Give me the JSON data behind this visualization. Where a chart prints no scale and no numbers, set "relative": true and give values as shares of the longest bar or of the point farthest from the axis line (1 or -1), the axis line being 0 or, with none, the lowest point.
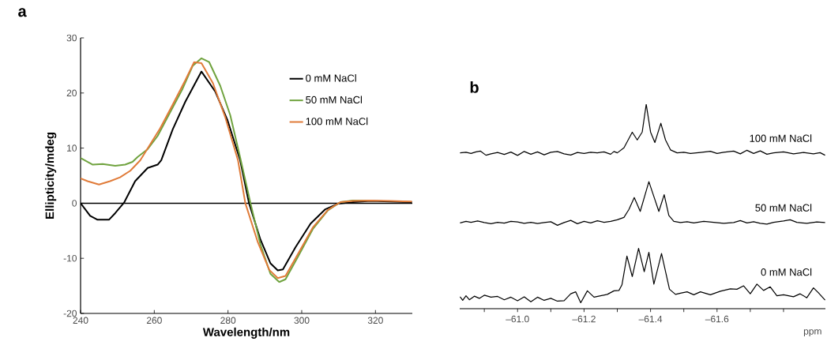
{
  "chart_data": [
    {
      "type": "line",
      "title": "a",
      "xlabel": "Wavelength/nm",
      "ylabel": "Ellipticity/mdeg",
      "xlim": [
        240,
        330
      ],
      "ylim": [
        -20,
        30
      ],
      "xticks": [
        240,
        260,
        280,
        300,
        320
      ],
      "yticks": [
        -20,
        -10,
        0,
        10,
        20,
        30
      ],
      "legend": "top right",
      "ref_lines": [
        {
          "axis": "y",
          "value": 0,
          "color": "#000000"
        }
      ],
      "series": [
        {
          "name": "0 mM NaCl",
          "color": "#000000",
          "x": [
            240,
            242.6,
            244.6,
            247.7,
            249.4,
            251.8,
            254.8,
            258.2,
            260.9,
            261.9,
            265,
            268.4,
            272.8,
            276.5,
            279.9,
            283.3,
            285.7,
            288.8,
            291.5,
            293.5,
            294.9,
            298.3,
            302.4,
            306.4,
            309.8,
            313.9,
            318.7,
            324.1,
            329.9
          ],
          "values": [
            0,
            -2.3,
            -3.0,
            -3.0,
            -1.8,
            0.1,
            4.0,
            6.4,
            7.0,
            7.8,
            13.4,
            18.4,
            23.9,
            20.3,
            15.0,
            7.8,
            0,
            -6.6,
            -10.9,
            -12.2,
            -12.0,
            -8.0,
            -3.7,
            -1.1,
            -0.1,
            0.2,
            0.4,
            0.3,
            0.2
          ]
        },
        {
          "name": "50 mM NaCl",
          "color": "#70a33f",
          "x": [
            240,
            243.3,
            246,
            249.4,
            252.1,
            254.1,
            255.5,
            258.2,
            260.9,
            264.3,
            267.7,
            270.4,
            272.8,
            274.9,
            277.9,
            280.6,
            283.3,
            286.1,
            288.8,
            291.5,
            293.9,
            295.6,
            299,
            303,
            307.1,
            310.5,
            313.9,
            318.7
          ],
          "values": [
            8.2,
            7.0,
            7.1,
            6.8,
            7.0,
            7.5,
            8.4,
            9.8,
            12.2,
            16.5,
            20.8,
            24.9,
            26.3,
            25.6,
            21.3,
            16.0,
            8.3,
            0,
            -7.5,
            -12.8,
            -14.3,
            -13.8,
            -9.7,
            -4.7,
            -1.3,
            0.2,
            0.5,
            0.5
          ]
        },
        {
          "name": "100 mM NaCl",
          "color": "#e07b39",
          "x": [
            240,
            241.9,
            245,
            248,
            250.7,
            253.5,
            256.2,
            258.9,
            261.6,
            265,
            268.4,
            270.8,
            272.8,
            275.9,
            279.3,
            282.7,
            284.7,
            288.1,
            291.2,
            293.5,
            295.6,
            299,
            303,
            307.1,
            310.5,
            313.9,
            318.7,
            324.1,
            329.9
          ],
          "values": [
            4.5,
            4.0,
            3.4,
            4.0,
            4.7,
            5.9,
            7.8,
            10.7,
            13.6,
            17.9,
            22.3,
            25.6,
            25.4,
            21.8,
            15.5,
            7.8,
            0,
            -7.1,
            -12.1,
            -13.6,
            -13.2,
            -9.2,
            -4.4,
            -1.2,
            0.2,
            0.4,
            0.5,
            0.4,
            0.3
          ]
        }
      ]
    },
    {
      "type": "line",
      "title": "b",
      "xlabel": "ppm",
      "relative": true,
      "legend": false,
      "tick_labels": "x",
      "xlim": [
        -60.826,
        -61.926
      ],
      "xticks": [
        {
          "value": -60.9,
          "label": null
        },
        {
          "value": -61.0,
          "label": "–61.0"
        },
        {
          "value": -61.1,
          "label": null
        },
        {
          "value": -61.2,
          "label": "–61.2"
        },
        {
          "value": -61.3,
          "label": null
        },
        {
          "value": -61.4,
          "label": "–61.4"
        },
        {
          "value": -61.5,
          "label": null
        },
        {
          "value": -61.6,
          "label": "–61.6"
        },
        {
          "value": -61.7,
          "label": null
        },
        {
          "value": -61.8,
          "label": null
        }
      ],
      "series": [
        {
          "name": "100 mM NaCl",
          "color": "#000000",
          "x": [
            -60.827,
            -60.845,
            -60.86,
            -60.875,
            -60.888,
            -60.905,
            -60.92,
            -60.94,
            -60.96,
            -60.98,
            -61.0,
            -61.02,
            -61.04,
            -61.06,
            -61.08,
            -61.1,
            -61.12,
            -61.14,
            -61.16,
            -61.18,
            -61.2,
            -61.22,
            -61.24,
            -61.26,
            -61.28,
            -61.29,
            -61.3,
            -61.32,
            -61.345,
            -61.36,
            -61.375,
            -61.387,
            -61.4,
            -61.413,
            -61.431,
            -61.445,
            -61.46,
            -61.48,
            -61.5,
            -61.52,
            -61.55,
            -61.58,
            -61.6,
            -61.62,
            -61.65,
            -61.67,
            -61.69,
            -61.71,
            -61.73,
            -61.75,
            -61.77,
            -61.8,
            -61.83,
            -61.86,
            -61.89,
            -61.91,
            -61.925
          ],
          "values": [
            0.755,
            0.758,
            0.752,
            0.76,
            0.764,
            0.743,
            0.75,
            0.757,
            0.747,
            0.759,
            0.742,
            0.762,
            0.748,
            0.76,
            0.745,
            0.758,
            0.762,
            0.75,
            0.744,
            0.757,
            0.752,
            0.758,
            0.755,
            0.76,
            0.748,
            0.762,
            0.755,
            0.78,
            0.859,
            0.82,
            0.86,
            1.0,
            0.86,
            0.807,
            0.904,
            0.82,
            0.77,
            0.755,
            0.758,
            0.752,
            0.757,
            0.763,
            0.752,
            0.758,
            0.764,
            0.75,
            0.768,
            0.752,
            0.765,
            0.748,
            0.755,
            0.76,
            0.75,
            0.757,
            0.75,
            0.756,
            0.743
          ]
        },
        {
          "name": "50 mM NaCl",
          "color": "#000000",
          "x": [
            -60.827,
            -60.845,
            -60.86,
            -60.88,
            -60.9,
            -60.92,
            -60.94,
            -60.96,
            -60.98,
            -61.0,
            -61.02,
            -61.04,
            -61.06,
            -61.08,
            -61.1,
            -61.12,
            -61.14,
            -61.16,
            -61.18,
            -61.2,
            -61.22,
            -61.24,
            -61.26,
            -61.28,
            -61.3,
            -61.32,
            -61.335,
            -61.351,
            -61.369,
            -61.395,
            -61.425,
            -61.441,
            -61.455,
            -61.47,
            -61.49,
            -61.51,
            -61.53,
            -61.56,
            -61.59,
            -61.62,
            -61.65,
            -61.67,
            -61.69,
            -61.71,
            -61.73,
            -61.75,
            -61.77,
            -61.8,
            -61.82,
            -61.84,
            -61.87,
            -61.9,
            -61.925
          ],
          "values": [
            0.402,
            0.41,
            0.405,
            0.412,
            0.404,
            0.398,
            0.405,
            0.401,
            0.41,
            0.407,
            0.4,
            0.405,
            0.399,
            0.404,
            0.408,
            0.39,
            0.404,
            0.415,
            0.398,
            0.41,
            0.402,
            0.413,
            0.405,
            0.41,
            0.418,
            0.43,
            0.47,
            0.53,
            0.46,
            0.61,
            0.46,
            0.544,
            0.44,
            0.41,
            0.404,
            0.408,
            0.402,
            0.41,
            0.405,
            0.4,
            0.404,
            0.414,
            0.402,
            0.408,
            0.4,
            0.396,
            0.405,
            0.412,
            0.418,
            0.405,
            0.4,
            0.407,
            0.404
          ]
        },
        {
          "name": "0 mM NaCl",
          "color": "#000000",
          "x": [
            -60.827,
            -60.835,
            -60.845,
            -60.855,
            -60.87,
            -60.885,
            -60.9,
            -60.92,
            -60.94,
            -60.96,
            -60.98,
            -61.0,
            -61.02,
            -61.04,
            -61.06,
            -61.08,
            -61.1,
            -61.12,
            -61.14,
            -61.16,
            -61.175,
            -61.19,
            -61.21,
            -61.23,
            -61.25,
            -61.27,
            -61.29,
            -61.305,
            -61.314,
            -61.329,
            -61.345,
            -61.364,
            -61.381,
            -61.395,
            -61.41,
            -61.433,
            -61.457,
            -61.475,
            -61.49,
            -61.51,
            -61.53,
            -61.55,
            -61.58,
            -61.61,
            -61.64,
            -61.66,
            -61.68,
            -61.7,
            -61.72,
            -61.74,
            -61.76,
            -61.78,
            -61.8,
            -61.83,
            -61.85,
            -61.87,
            -61.89,
            -61.905,
            -61.925
          ],
          "values": [
            0.03,
            0.012,
            0.035,
            0.015,
            0.033,
            0.022,
            0.038,
            0.028,
            0.032,
            0.015,
            0.028,
            0.01,
            0.03,
            0.005,
            0.028,
            0.012,
            0.022,
            0.008,
            0.01,
            0.045,
            0.055,
            0.0,
            0.06,
            0.028,
            0.035,
            0.042,
            0.06,
            0.062,
            0.09,
            0.235,
            0.132,
            0.274,
            0.156,
            0.254,
            0.094,
            0.248,
            0.068,
            0.042,
            0.048,
            0.055,
            0.04,
            0.055,
            0.04,
            0.058,
            0.07,
            0.068,
            0.085,
            0.045,
            0.094,
            0.062,
            0.08,
            0.035,
            0.04,
            0.03,
            0.045,
            0.025,
            0.075,
            0.05,
            0.013
          ]
        }
      ]
    }
  ]
}
